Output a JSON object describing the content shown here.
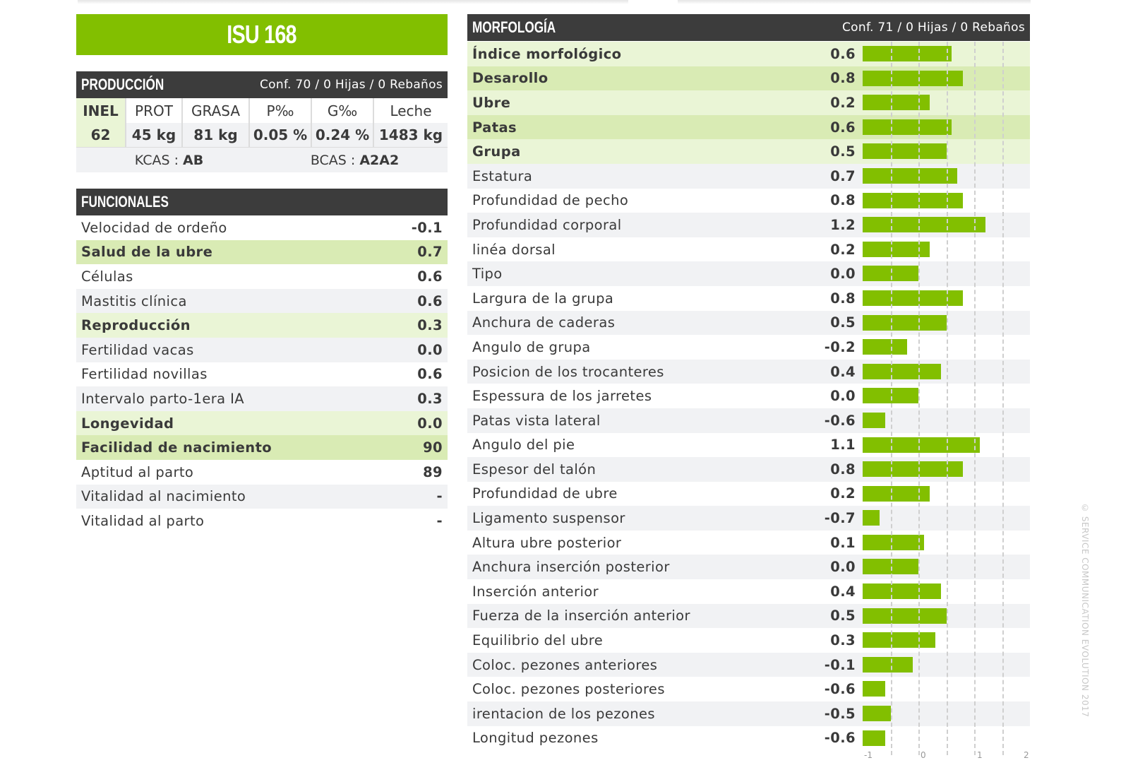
{
  "title": "ISU 168",
  "produccion": {
    "header": "PRODUCCIÓN",
    "conf": "Conf. 70 / 0 Hijas / 0 Rebaños",
    "columns": [
      "INEL",
      "PROT",
      "GRASA",
      "P‰",
      "G‰",
      "Leche"
    ],
    "values": [
      "62",
      "45 kg",
      "81 kg",
      "0.05 %",
      "0.24 %",
      "1483 kg"
    ],
    "kcas_label": "KCAS : ",
    "kcas": "AB",
    "bcas_label": "BCAS : ",
    "bcas": "A2A2"
  },
  "funcionales": {
    "header": "FUNCIONALES",
    "rows": [
      {
        "label": "Velocidad de ordeño",
        "value": "-0.1",
        "hl": false
      },
      {
        "label": "Salud de la ubre",
        "value": "0.7",
        "hl": true
      },
      {
        "label": "Células",
        "value": "0.6",
        "hl": false
      },
      {
        "label": "Mastitis clínica",
        "value": "0.6",
        "hl": false
      },
      {
        "label": "Reproducción",
        "value": "0.3",
        "hl": true
      },
      {
        "label": "Fertilidad vacas",
        "value": "0.0",
        "hl": false
      },
      {
        "label": "Fertilidad novillas",
        "value": "0.6",
        "hl": false
      },
      {
        "label": "Intervalo parto-1era IA",
        "value": "0.3",
        "hl": false
      },
      {
        "label": "Longevidad",
        "value": "0.0",
        "hl": true
      },
      {
        "label": "Facilidad de nacimiento",
        "value": "90",
        "hl": true
      },
      {
        "label": "Aptitud al parto",
        "value": "89",
        "hl": false
      },
      {
        "label": "Vitalidad al nacimiento",
        "value": "-",
        "hl": false
      },
      {
        "label": "Vitalidad al parto",
        "value": "-",
        "hl": false
      }
    ]
  },
  "morfologia": {
    "header": "MORFOLOGÍA",
    "conf": "Conf. 71 / 0 Hijas / 0 Rebaños"
  },
  "chart_data": {
    "type": "bar",
    "orientation": "horizontal",
    "xlim": [
      -1,
      2
    ],
    "bar_base": -1,
    "ticks": [
      "-1",
      "0",
      "1",
      "2"
    ],
    "colors": {
      "bar": "#82bf00"
    },
    "rows": [
      {
        "label": "Índice morfológico",
        "value": 0.6,
        "text": "0.6",
        "hl": true
      },
      {
        "label": "Desarollo",
        "value": 0.8,
        "text": "0.8",
        "hl": true
      },
      {
        "label": "Ubre",
        "value": 0.2,
        "text": "0.2",
        "hl": true
      },
      {
        "label": "Patas",
        "value": 0.6,
        "text": "0.6",
        "hl": true
      },
      {
        "label": "Grupa",
        "value": 0.5,
        "text": "0.5",
        "hl": true
      },
      {
        "label": "Estatura",
        "value": 0.7,
        "text": "0.7",
        "hl": false
      },
      {
        "label": "Profundidad de pecho",
        "value": 0.8,
        "text": "0.8",
        "hl": false
      },
      {
        "label": "Profundidad corporal",
        "value": 1.2,
        "text": "1.2",
        "hl": false
      },
      {
        "label": "linéa dorsal",
        "value": 0.2,
        "text": "0.2",
        "hl": false
      },
      {
        "label": "Tipo",
        "value": 0.0,
        "text": "0.0",
        "hl": false
      },
      {
        "label": "Largura de la grupa",
        "value": 0.8,
        "text": "0.8",
        "hl": false
      },
      {
        "label": "Anchura de caderas",
        "value": 0.5,
        "text": "0.5",
        "hl": false
      },
      {
        "label": "Angulo de grupa",
        "value": -0.2,
        "text": "-0.2",
        "hl": false
      },
      {
        "label": "Posicion de los trocanteres",
        "value": 0.4,
        "text": "0.4",
        "hl": false
      },
      {
        "label": "Espessura de los jarretes",
        "value": 0.0,
        "text": "0.0",
        "hl": false
      },
      {
        "label": "Patas vista lateral",
        "value": -0.6,
        "text": "-0.6",
        "hl": false
      },
      {
        "label": "Angulo del pie",
        "value": 1.1,
        "text": "1.1",
        "hl": false
      },
      {
        "label": "Espesor del talón",
        "value": 0.8,
        "text": "0.8",
        "hl": false
      },
      {
        "label": "Profundidad de ubre",
        "value": 0.2,
        "text": "0.2",
        "hl": false
      },
      {
        "label": "Ligamento suspensor",
        "value": -0.7,
        "text": "-0.7",
        "hl": false
      },
      {
        "label": "Altura ubre posterior",
        "value": 0.1,
        "text": "0.1",
        "hl": false
      },
      {
        "label": "Anchura inserción posterior",
        "value": 0.0,
        "text": "0.0",
        "hl": false
      },
      {
        "label": "Inserción anterior",
        "value": 0.4,
        "text": "0.4",
        "hl": false
      },
      {
        "label": "Fuerza de la inserción anterior",
        "value": 0.5,
        "text": "0.5",
        "hl": false
      },
      {
        "label": "Equilibrio del ubre",
        "value": 0.3,
        "text": "0.3",
        "hl": false
      },
      {
        "label": "Coloc. pezones anteriores",
        "value": -0.1,
        "text": "-0.1",
        "hl": false
      },
      {
        "label": "Coloc. pezones posteriores",
        "value": -0.6,
        "text": "-0.6",
        "hl": false
      },
      {
        "label": "irentacion de los pezones",
        "value": -0.5,
        "text": "-0.5",
        "hl": false
      },
      {
        "label": "Longitud pezones",
        "value": -0.6,
        "text": "-0.6",
        "hl": false
      }
    ]
  },
  "copyright": "© SERVICE COMMUNICATION EVOLUTION 2017"
}
